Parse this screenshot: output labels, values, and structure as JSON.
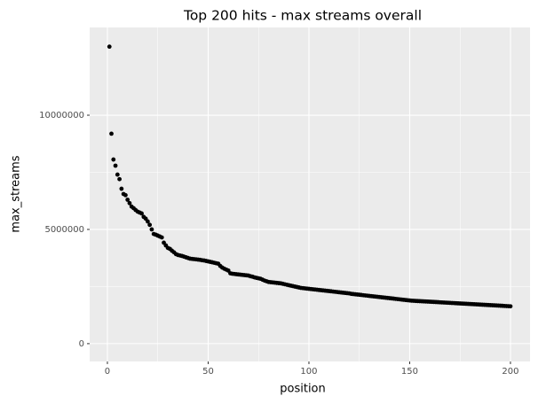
{
  "chart_data": {
    "type": "scatter",
    "title": "Top 200 hits - max streams overall",
    "x_label": "position",
    "y_label": "max_streams",
    "color": "#000000",
    "grid": true,
    "xlim": [
      -8.8,
      209.7
    ],
    "ylim": [
      -780000,
      13840000
    ],
    "xticks": [
      0,
      50,
      100,
      150,
      200
    ],
    "yticks": [
      0,
      5000000,
      10000000
    ],
    "x": [
      1,
      2,
      3,
      4,
      5,
      6,
      7,
      8,
      9,
      10,
      11,
      12,
      13,
      14,
      15,
      16,
      17,
      18,
      19,
      20,
      21,
      22,
      23,
      24,
      25,
      26,
      27,
      28,
      29,
      30,
      31,
      32,
      33,
      34,
      35,
      36,
      37,
      38,
      39,
      40,
      41,
      42,
      43,
      44,
      45,
      46,
      47,
      48,
      49,
      50,
      51,
      52,
      53,
      54,
      55,
      56,
      57,
      58,
      59,
      60,
      61,
      62,
      63,
      64,
      65,
      66,
      67,
      68,
      69,
      70,
      71,
      72,
      73,
      74,
      75,
      76,
      77,
      78,
      79,
      80,
      81,
      82,
      83,
      84,
      85,
      86,
      87,
      88,
      89,
      90,
      91,
      92,
      93,
      94,
      95,
      96,
      97,
      98,
      99,
      100,
      101,
      102,
      103,
      104,
      105,
      106,
      107,
      108,
      109,
      110,
      111,
      112,
      113,
      114,
      115,
      116,
      117,
      118,
      119,
      120,
      121,
      122,
      123,
      124,
      125,
      126,
      127,
      128,
      129,
      130,
      131,
      132,
      133,
      134,
      135,
      136,
      137,
      138,
      139,
      140,
      141,
      142,
      143,
      144,
      145,
      146,
      147,
      148,
      149,
      150,
      151,
      152,
      153,
      154,
      155,
      156,
      157,
      158,
      159,
      160,
      161,
      162,
      163,
      164,
      165,
      166,
      167,
      168,
      169,
      170,
      171,
      172,
      173,
      174,
      175,
      176,
      177,
      178,
      179,
      180,
      181,
      182,
      183,
      184,
      185,
      186,
      187,
      188,
      189,
      190,
      191,
      192,
      193,
      194,
      195,
      196,
      197,
      198,
      199,
      200
    ],
    "values": [
      13000000,
      9190000,
      8060000,
      7790000,
      7400000,
      7200000,
      6780000,
      6550000,
      6500000,
      6300000,
      6150000,
      6000000,
      5930000,
      5850000,
      5780000,
      5740000,
      5700000,
      5550000,
      5470000,
      5350000,
      5200000,
      5000000,
      4800000,
      4770000,
      4730000,
      4690000,
      4650000,
      4420000,
      4300000,
      4190000,
      4150000,
      4070000,
      4000000,
      3920000,
      3880000,
      3860000,
      3840000,
      3810000,
      3780000,
      3750000,
      3720000,
      3710000,
      3700000,
      3690000,
      3680000,
      3670000,
      3650000,
      3640000,
      3620000,
      3600000,
      3580000,
      3560000,
      3540000,
      3520000,
      3500000,
      3400000,
      3330000,
      3280000,
      3240000,
      3200000,
      3080000,
      3060000,
      3050000,
      3040000,
      3030000,
      3020000,
      3010000,
      3000000,
      2990000,
      2980000,
      2950000,
      2930000,
      2900000,
      2880000,
      2860000,
      2840000,
      2800000,
      2760000,
      2730000,
      2700000,
      2690000,
      2680000,
      2670000,
      2660000,
      2650000,
      2640000,
      2620000,
      2600000,
      2580000,
      2560000,
      2540000,
      2520000,
      2500000,
      2480000,
      2460000,
      2440000,
      2430000,
      2420000,
      2410000,
      2400000,
      2390000,
      2380000,
      2370000,
      2360000,
      2350000,
      2340000,
      2330000,
      2320000,
      2310000,
      2300000,
      2290000,
      2280000,
      2270000,
      2260000,
      2250000,
      2240000,
      2230000,
      2220000,
      2210000,
      2200000,
      2180000,
      2170000,
      2160000,
      2150000,
      2140000,
      2130000,
      2120000,
      2110000,
      2100000,
      2090000,
      2080000,
      2070000,
      2060000,
      2050000,
      2040000,
      2030000,
      2020000,
      2010000,
      2000000,
      1990000,
      1980000,
      1970000,
      1960000,
      1950000,
      1940000,
      1930000,
      1920000,
      1910000,
      1900000,
      1890000,
      1880000,
      1875000,
      1870000,
      1865000,
      1860000,
      1855000,
      1850000,
      1845000,
      1840000,
      1835000,
      1830000,
      1825000,
      1820000,
      1815000,
      1810000,
      1805000,
      1800000,
      1795000,
      1790000,
      1785000,
      1780000,
      1775000,
      1770000,
      1765000,
      1760000,
      1755000,
      1750000,
      1745000,
      1740000,
      1735000,
      1730000,
      1725000,
      1720000,
      1715000,
      1710000,
      1705000,
      1700000,
      1695000,
      1690000,
      1685000,
      1680000,
      1675000,
      1670000,
      1665000,
      1660000,
      1655000,
      1650000,
      1645000,
      1640000,
      1635000
    ]
  }
}
